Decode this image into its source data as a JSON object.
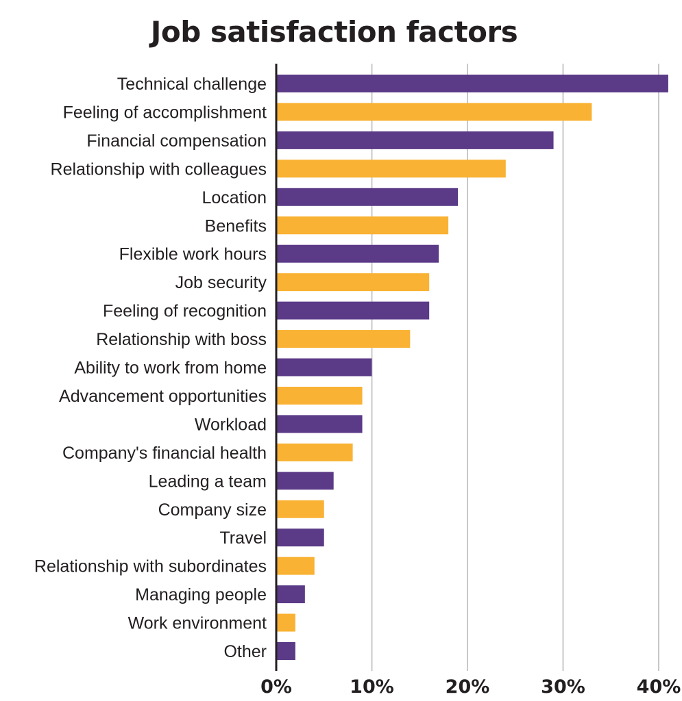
{
  "chart_data": {
    "type": "bar",
    "orientation": "horizontal",
    "title": "Job satisfaction factors",
    "xlabel": "",
    "ylabel": "",
    "xlim": [
      0,
      41
    ],
    "x_ticks": [
      "0%",
      "10%",
      "20%",
      "30%",
      "40%"
    ],
    "x_tick_values": [
      0,
      10,
      20,
      30,
      40
    ],
    "grid": true,
    "colors": [
      "#5b3a87",
      "#f9b233"
    ],
    "categories": [
      "Technical challenge",
      "Feeling of accomplishment",
      "Financial compensation",
      "Relationship with colleagues",
      "Location",
      "Benefits",
      "Flexible work hours",
      "Job security",
      "Feeling of recognition",
      "Relationship with boss",
      "Ability to work from home",
      "Advancement opportunities",
      "Workload",
      "Company's financial health",
      "Leading a team",
      "Company size",
      "Travel",
      "Relationship with subordinates",
      "Managing people",
      "Work environment",
      "Other"
    ],
    "values": [
      41,
      33,
      29,
      24,
      19,
      18,
      17,
      16,
      16,
      14,
      10,
      9,
      9,
      8,
      6,
      5,
      5,
      4,
      3,
      2,
      2
    ]
  }
}
